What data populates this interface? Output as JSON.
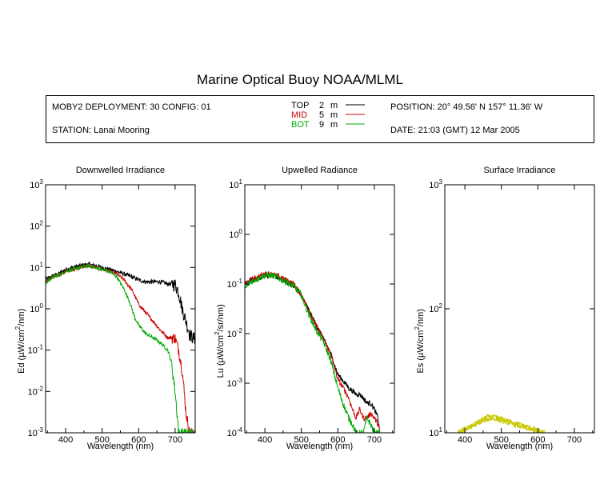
{
  "header": {
    "title": "Marine Optical Buoy NOAA/MLML",
    "deployment": "MOBY2 DEPLOYMENT: 30 CONFIG: 01",
    "station": "STATION: Lanai Mooring",
    "position": "POSITION: 20° 49.56' N   157° 11.36' W",
    "date": "DATE: 21:03 (GMT) 12 Mar 2005"
  },
  "legend": [
    {
      "name": "TOP",
      "depth": "2",
      "unit": "m",
      "color": "#000000"
    },
    {
      "name": "MID",
      "depth": "5",
      "unit": "m",
      "color": "#cc0000"
    },
    {
      "name": "BOT",
      "depth": "9",
      "unit": "m",
      "color": "#00aa00"
    }
  ],
  "colors": {
    "surface": "#c8c800"
  },
  "chart_data": [
    {
      "type": "line",
      "title": "Downwelled Irradiance",
      "xlabel": "Wavelength (nm)",
      "ylabel": "Ed (µW/cm²/nm)",
      "ylabel_parts": {
        "pre": "Ed  (µW/cm",
        "sup": "2",
        "post": "/nm)"
      },
      "xlim": [
        345,
        755
      ],
      "ylim": [
        0.001,
        1000
      ],
      "yscale": "log",
      "xticks": [
        400,
        500,
        600,
        700
      ],
      "yticks": [
        {
          "base": "10",
          "exp": "-3",
          "v": 0.001
        },
        {
          "base": "10",
          "exp": "-2",
          "v": 0.01
        },
        {
          "base": "10",
          "exp": "-1",
          "v": 0.1
        },
        {
          "base": "10",
          "exp": "0",
          "v": 1
        },
        {
          "base": "10",
          "exp": "1",
          "v": 10
        },
        {
          "base": "10",
          "exp": "2",
          "v": 100
        },
        {
          "base": "10",
          "exp": "3",
          "v": 1000
        }
      ],
      "series": [
        {
          "name": "TOP",
          "color": "#000000",
          "noise": 0.12,
          "x": [
            345,
            360,
            380,
            400,
            420,
            440,
            460,
            480,
            500,
            520,
            540,
            560,
            580,
            600,
            620,
            640,
            660,
            680,
            700,
            710,
            720,
            730,
            740,
            750,
            755
          ],
          "y": [
            5,
            6,
            7,
            9,
            10,
            11,
            12,
            11,
            10,
            9,
            8,
            7,
            6,
            5,
            4.5,
            4.5,
            4.5,
            4,
            4,
            2.5,
            1,
            0.5,
            0.25,
            0.2,
            0.2
          ]
        },
        {
          "name": "MID",
          "color": "#cc0000",
          "noise": 0.1,
          "x": [
            345,
            360,
            380,
            400,
            420,
            440,
            460,
            480,
            500,
            520,
            540,
            560,
            580,
            590,
            600,
            610,
            620,
            640,
            660,
            680,
            700,
            710,
            720,
            730,
            740,
            750,
            755
          ],
          "y": [
            4.5,
            5.5,
            6.5,
            8,
            9,
            10,
            11,
            10,
            9,
            8,
            7,
            5,
            3,
            2,
            1.3,
            1,
            0.8,
            0.5,
            0.3,
            0.2,
            0.2,
            0.1,
            0.03,
            0.003,
            0.001,
            0.001,
            0.001
          ]
        },
        {
          "name": "BOT",
          "color": "#00aa00",
          "noise": 0.1,
          "x": [
            345,
            360,
            380,
            400,
            420,
            440,
            460,
            480,
            500,
            520,
            540,
            560,
            575,
            590,
            600,
            620,
            640,
            660,
            680,
            690,
            700,
            710,
            720,
            730,
            740,
            750
          ],
          "y": [
            4,
            5.5,
            6.5,
            8,
            9,
            10,
            11,
            10,
            9,
            8,
            6,
            3,
            1.5,
            0.6,
            0.4,
            0.25,
            0.2,
            0.15,
            0.1,
            0.05,
            0.01,
            0.001,
            0.001,
            0.001,
            0.001,
            0.001
          ]
        }
      ]
    },
    {
      "type": "line",
      "title": "Upwelled Radiance",
      "xlabel": "Wavelength (nm)",
      "ylabel": "Lu (µW/cm²/sr/nm)",
      "ylabel_parts": {
        "pre": "Lu  (µW/cm",
        "sup": "2",
        "post": "/sr/nm)"
      },
      "xlim": [
        345,
        755
      ],
      "ylim": [
        0.0001,
        10
      ],
      "yscale": "log",
      "xticks": [
        400,
        500,
        600,
        700
      ],
      "yticks": [
        {
          "base": "10",
          "exp": "-4",
          "v": 0.0001
        },
        {
          "base": "10",
          "exp": "-3",
          "v": 0.001
        },
        {
          "base": "10",
          "exp": "-2",
          "v": 0.01
        },
        {
          "base": "10",
          "exp": "-1",
          "v": 0.1
        },
        {
          "base": "10",
          "exp": "0",
          "v": 1
        },
        {
          "base": "10",
          "exp": "1",
          "v": 10
        }
      ],
      "series": [
        {
          "name": "TOP",
          "color": "#000000",
          "noise": 0.12,
          "x": [
            345,
            360,
            380,
            400,
            420,
            440,
            460,
            480,
            500,
            520,
            540,
            560,
            580,
            600,
            620,
            630,
            640,
            650,
            660,
            670,
            680,
            690,
            700,
            710,
            715
          ],
          "y": [
            0.1,
            0.12,
            0.13,
            0.15,
            0.15,
            0.13,
            0.11,
            0.09,
            0.06,
            0.03,
            0.015,
            0.008,
            0.004,
            0.0015,
            0.001,
            0.0008,
            0.0007,
            0.0006,
            0.0006,
            0.0005,
            0.0004,
            0.0004,
            0.0003,
            0.0002,
            0.0001
          ]
        },
        {
          "name": "MID",
          "color": "#cc0000",
          "noise": 0.12,
          "x": [
            345,
            360,
            380,
            400,
            420,
            440,
            460,
            480,
            500,
            520,
            540,
            560,
            580,
            600,
            620,
            630,
            640,
            650,
            660,
            670,
            680,
            690,
            700,
            710,
            715
          ],
          "y": [
            0.1,
            0.12,
            0.14,
            0.16,
            0.16,
            0.14,
            0.12,
            0.1,
            0.06,
            0.03,
            0.015,
            0.008,
            0.004,
            0.0012,
            0.0007,
            0.0005,
            0.0003,
            0.0002,
            0.0003,
            0.0002,
            0.0002,
            0.00025,
            0.0002,
            0.00015,
            0.0001
          ]
        },
        {
          "name": "BOT",
          "color": "#00aa00",
          "noise": 0.15,
          "x": [
            345,
            360,
            380,
            400,
            420,
            440,
            460,
            480,
            500,
            520,
            540,
            560,
            580,
            600,
            620,
            630,
            640,
            650,
            660,
            670,
            680,
            690,
            700,
            710,
            715
          ],
          "y": [
            0.08,
            0.11,
            0.13,
            0.15,
            0.15,
            0.13,
            0.11,
            0.09,
            0.06,
            0.025,
            0.012,
            0.007,
            0.003,
            0.0008,
            0.0003,
            0.0002,
            0.00015,
            0.0001,
            0.0001,
            0.0001,
            0.0002,
            0.00015,
            0.0001,
            0.0001,
            0.0001
          ]
        }
      ]
    },
    {
      "type": "line",
      "title": "Surface Irradiance",
      "xlabel": "Wavelength (nm)",
      "ylabel": "Es (µW/cm²/nm)",
      "ylabel_parts": {
        "pre": "Es  (µW/cm",
        "sup": "2",
        "post": "/nm)"
      },
      "xlim": [
        345,
        755
      ],
      "ylim": [
        10,
        1000
      ],
      "yscale": "log",
      "xticks": [
        400,
        500,
        600,
        700
      ],
      "yticks": [
        {
          "base": "10",
          "exp": "1",
          "v": 10
        },
        {
          "base": "10",
          "exp": "2",
          "v": 100
        },
        {
          "base": "10",
          "exp": "3",
          "v": 1000
        }
      ],
      "series": [
        {
          "name": "",
          "color": "#c8c800",
          "noise": 0.04,
          "x": [
            380,
            400,
            420,
            440,
            460,
            480,
            500,
            520,
            540,
            560,
            580,
            600,
            620
          ],
          "y": [
            10,
            10.8,
            11.5,
            12.5,
            13.5,
            13.5,
            13,
            12.5,
            12,
            11.5,
            11,
            10.5,
            10
          ]
        },
        {
          "name": "",
          "color": "#c8c800",
          "noise": 0.04,
          "x": [
            385,
            400,
            420,
            440,
            460,
            480,
            500,
            520,
            540,
            560,
            580,
            600,
            615
          ],
          "y": [
            10,
            10.5,
            11.2,
            12,
            12.8,
            13,
            12.5,
            12,
            11.5,
            11,
            10.6,
            10.2,
            10
          ]
        }
      ]
    }
  ]
}
